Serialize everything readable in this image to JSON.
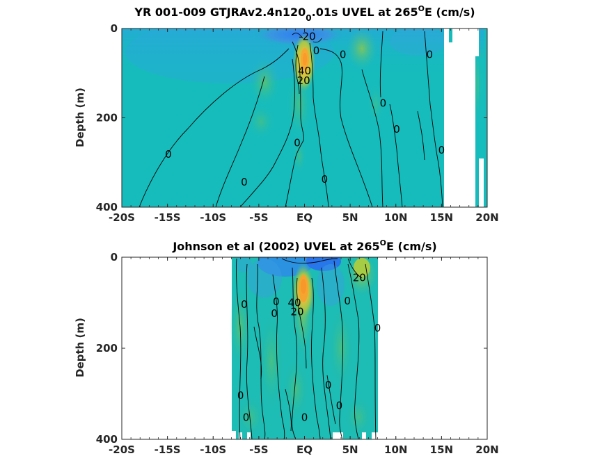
{
  "chart_data": [
    {
      "type": "heatmap",
      "title": {
        "main": "YR 001-009 GTJRAv2.4n120",
        "sub": "0",
        "after": ".01s UVEL at 265",
        "sup": "O",
        "end": "E (cm/s)"
      },
      "ylabel": "Depth (m)",
      "x_ticks": [
        "-20S",
        "-15S",
        "-10S",
        "-5S",
        "EQ",
        "5N",
        "10N",
        "15N",
        "20N"
      ],
      "y_ticks": [
        "0",
        "200",
        "400"
      ],
      "xlim": [
        -20,
        20
      ],
      "ylim": [
        0,
        400
      ],
      "jet_core": {
        "x": 0,
        "y": 70,
        "value": 40
      },
      "contour_labels": [
        {
          "text": "-20",
          "x": 0.3,
          "y": 18
        },
        {
          "text": "0",
          "x": 1.3,
          "y": 50
        },
        {
          "text": "0",
          "x": 4.2,
          "y": 58
        },
        {
          "text": "0",
          "x": 13.7,
          "y": 58
        },
        {
          "text": "40",
          "x": 0.0,
          "y": 95
        },
        {
          "text": "20",
          "x": -0.1,
          "y": 117
        },
        {
          "text": "0",
          "x": 8.6,
          "y": 167
        },
        {
          "text": "0",
          "x": 10.1,
          "y": 226
        },
        {
          "text": "0",
          "x": -0.8,
          "y": 256
        },
        {
          "text": "0",
          "x": 15.0,
          "y": 272
        },
        {
          "text": "0",
          "x": -14.9,
          "y": 282
        },
        {
          "text": "0",
          "x": -6.6,
          "y": 344
        },
        {
          "text": "0",
          "x": 2.2,
          "y": 338
        }
      ]
    },
    {
      "type": "heatmap",
      "title": {
        "main": "Johnson et al (2002) UVEL at 265",
        "sup": "O",
        "end": "E (cm/s)"
      },
      "ylabel": "Depth (m)",
      "x_ticks": [
        "-20S",
        "-15S",
        "-10S",
        "-5S",
        "EQ",
        "5N",
        "10N",
        "15N",
        "20N"
      ],
      "y_ticks": [
        "0",
        "200",
        "400"
      ],
      "xlim": [
        -20,
        20
      ],
      "ylim": [
        0,
        400
      ],
      "data_xrange": [
        -8,
        8
      ],
      "jet_core": {
        "x": 0,
        "y": 70,
        "value": 40
      },
      "contour_labels": [
        {
          "text": "20",
          "x": 6.0,
          "y": 45
        },
        {
          "text": "0",
          "x": -6.6,
          "y": 104
        },
        {
          "text": "0",
          "x": -3.1,
          "y": 98
        },
        {
          "text": "40",
          "x": -1.1,
          "y": 100
        },
        {
          "text": "20",
          "x": -0.8,
          "y": 120
        },
        {
          "text": "0",
          "x": 4.7,
          "y": 96
        },
        {
          "text": "0",
          "x": -3.3,
          "y": 124
        },
        {
          "text": "0",
          "x": 8.0,
          "y": 156
        },
        {
          "text": "0",
          "x": 2.6,
          "y": 281
        },
        {
          "text": "0",
          "x": -7.0,
          "y": 304
        },
        {
          "text": "0",
          "x": 3.8,
          "y": 326
        },
        {
          "text": "0",
          "x": -6.4,
          "y": 352
        },
        {
          "text": "0",
          "x": 0.0,
          "y": 352
        }
      ]
    }
  ]
}
